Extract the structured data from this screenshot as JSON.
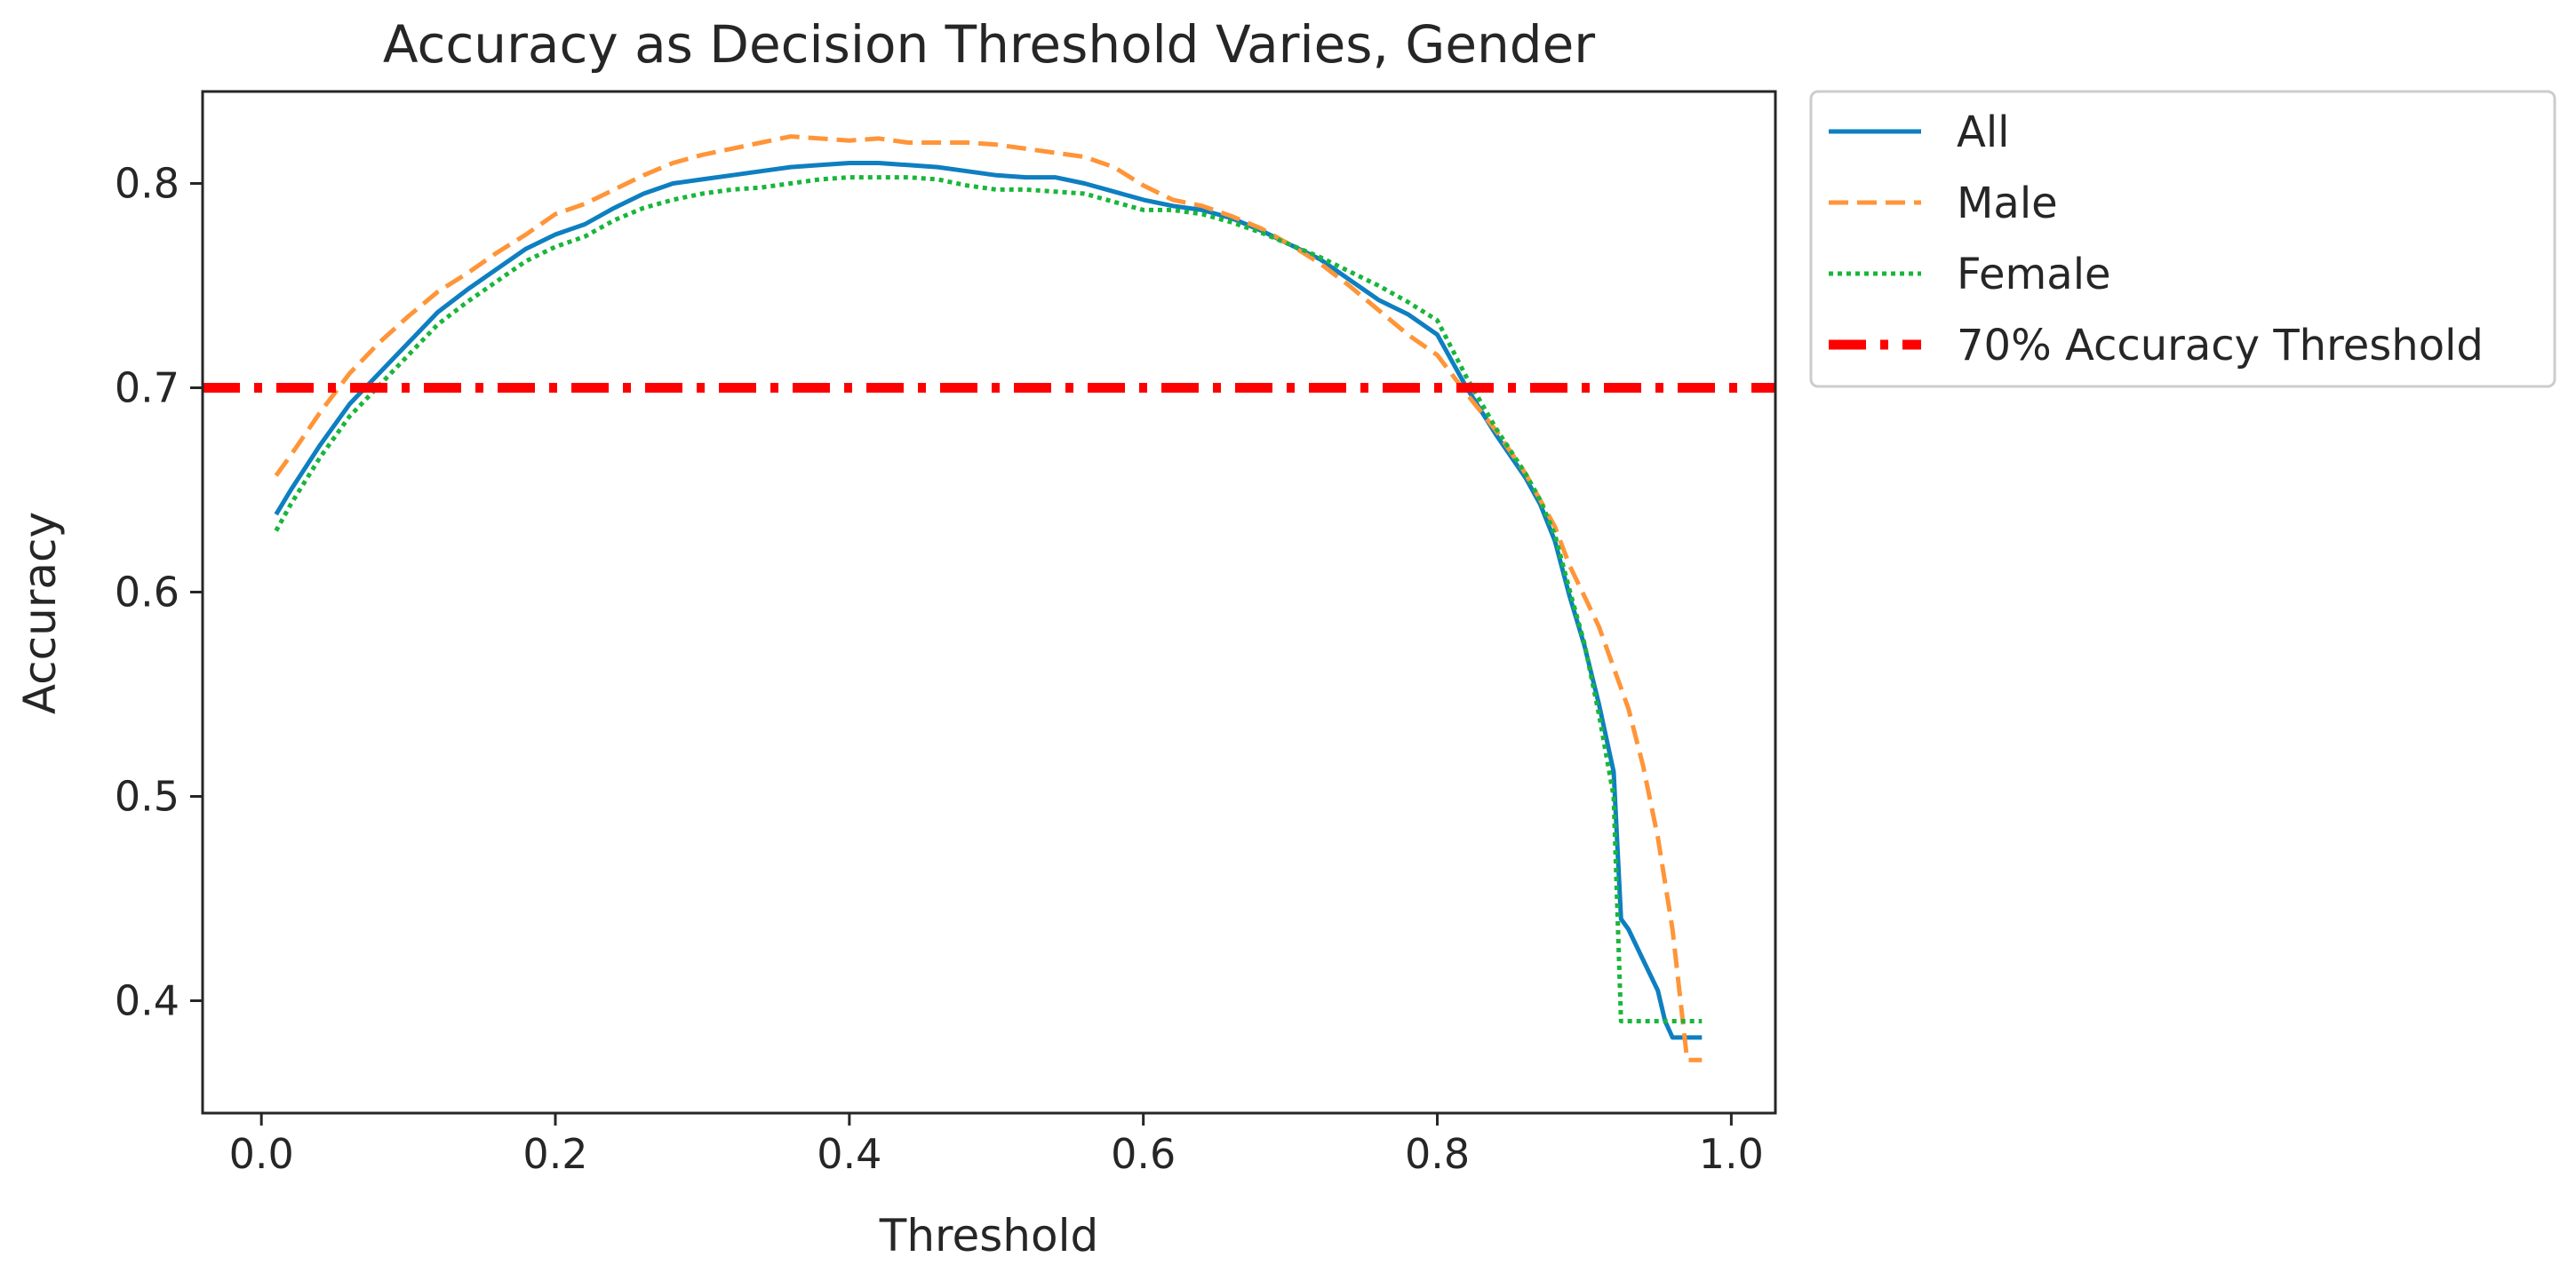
{
  "chart_data": {
    "type": "line",
    "title": "Accuracy as Decision Threshold Varies, Gender",
    "xlabel": "Threshold",
    "ylabel": "Accuracy",
    "xlim": [
      -0.04,
      1.03
    ],
    "ylim": [
      0.345,
      0.845
    ],
    "xticks": [
      0.0,
      0.2,
      0.4,
      0.6,
      0.8,
      1.0
    ],
    "xtick_labels": [
      "0.0",
      "0.2",
      "0.4",
      "0.6",
      "0.8",
      "1.0"
    ],
    "yticks": [
      0.4,
      0.5,
      0.6,
      0.7,
      0.8
    ],
    "ytick_labels": [
      "0.4",
      "0.5",
      "0.6",
      "0.7",
      "0.8"
    ],
    "grid": false,
    "legend_position": "outside upper-right",
    "series": [
      {
        "name": "All",
        "style": "solid",
        "color": "#0e7fc0",
        "x": [
          0.01,
          0.02,
          0.04,
          0.06,
          0.08,
          0.1,
          0.12,
          0.14,
          0.16,
          0.18,
          0.2,
          0.22,
          0.24,
          0.26,
          0.28,
          0.3,
          0.32,
          0.34,
          0.36,
          0.38,
          0.4,
          0.42,
          0.44,
          0.46,
          0.48,
          0.5,
          0.52,
          0.54,
          0.56,
          0.58,
          0.6,
          0.62,
          0.64,
          0.66,
          0.68,
          0.7,
          0.72,
          0.74,
          0.76,
          0.78,
          0.8,
          0.82,
          0.84,
          0.86,
          0.87,
          0.88,
          0.89,
          0.9,
          0.91,
          0.92,
          0.925,
          0.93,
          0.94,
          0.95,
          0.955,
          0.96,
          0.97,
          0.98
        ],
        "y": [
          0.638,
          0.65,
          0.672,
          0.692,
          0.707,
          0.722,
          0.737,
          0.748,
          0.758,
          0.768,
          0.775,
          0.78,
          0.788,
          0.795,
          0.8,
          0.802,
          0.804,
          0.806,
          0.808,
          0.809,
          0.81,
          0.81,
          0.809,
          0.808,
          0.806,
          0.804,
          0.803,
          0.803,
          0.8,
          0.796,
          0.792,
          0.789,
          0.787,
          0.783,
          0.777,
          0.77,
          0.763,
          0.753,
          0.743,
          0.736,
          0.726,
          0.7,
          0.677,
          0.656,
          0.643,
          0.625,
          0.598,
          0.574,
          0.545,
          0.512,
          0.44,
          0.435,
          0.42,
          0.405,
          0.39,
          0.382,
          0.382,
          0.382
        ]
      },
      {
        "name": "Male",
        "style": "dashed",
        "color": "#ff9538",
        "x": [
          0.01,
          0.02,
          0.04,
          0.06,
          0.08,
          0.1,
          0.12,
          0.14,
          0.16,
          0.18,
          0.2,
          0.22,
          0.24,
          0.26,
          0.28,
          0.3,
          0.32,
          0.34,
          0.36,
          0.38,
          0.4,
          0.42,
          0.44,
          0.46,
          0.48,
          0.5,
          0.52,
          0.54,
          0.56,
          0.58,
          0.6,
          0.62,
          0.64,
          0.66,
          0.68,
          0.7,
          0.72,
          0.74,
          0.76,
          0.78,
          0.8,
          0.82,
          0.84,
          0.86,
          0.88,
          0.89,
          0.9,
          0.91,
          0.92,
          0.93,
          0.94,
          0.95,
          0.96,
          0.97,
          0.98
        ],
        "y": [
          0.657,
          0.667,
          0.688,
          0.707,
          0.722,
          0.735,
          0.747,
          0.756,
          0.766,
          0.775,
          0.785,
          0.79,
          0.797,
          0.804,
          0.81,
          0.814,
          0.817,
          0.82,
          0.823,
          0.822,
          0.821,
          0.822,
          0.82,
          0.82,
          0.82,
          0.819,
          0.817,
          0.815,
          0.813,
          0.808,
          0.799,
          0.792,
          0.789,
          0.784,
          0.778,
          0.77,
          0.761,
          0.75,
          0.738,
          0.726,
          0.716,
          0.697,
          0.679,
          0.658,
          0.632,
          0.613,
          0.598,
          0.583,
          0.563,
          0.543,
          0.515,
          0.48,
          0.435,
          0.371,
          0.371
        ]
      },
      {
        "name": "Female",
        "style": "dotted",
        "color": "#19b63b",
        "x": [
          0.01,
          0.02,
          0.04,
          0.06,
          0.08,
          0.1,
          0.12,
          0.14,
          0.16,
          0.18,
          0.2,
          0.22,
          0.24,
          0.26,
          0.28,
          0.3,
          0.32,
          0.34,
          0.36,
          0.38,
          0.4,
          0.42,
          0.44,
          0.46,
          0.48,
          0.5,
          0.52,
          0.54,
          0.56,
          0.58,
          0.6,
          0.62,
          0.64,
          0.66,
          0.68,
          0.7,
          0.72,
          0.74,
          0.76,
          0.78,
          0.8,
          0.82,
          0.84,
          0.86,
          0.87,
          0.88,
          0.89,
          0.9,
          0.91,
          0.92,
          0.925,
          0.93,
          0.94,
          0.95,
          0.96,
          0.97,
          0.98
        ],
        "y": [
          0.63,
          0.643,
          0.666,
          0.686,
          0.701,
          0.716,
          0.731,
          0.742,
          0.752,
          0.762,
          0.769,
          0.774,
          0.782,
          0.788,
          0.792,
          0.795,
          0.797,
          0.798,
          0.8,
          0.802,
          0.803,
          0.803,
          0.803,
          0.802,
          0.799,
          0.797,
          0.797,
          0.796,
          0.795,
          0.791,
          0.787,
          0.787,
          0.785,
          0.781,
          0.776,
          0.77,
          0.764,
          0.757,
          0.75,
          0.742,
          0.733,
          0.705,
          0.68,
          0.658,
          0.645,
          0.628,
          0.601,
          0.575,
          0.54,
          0.5,
          0.39,
          0.39,
          0.39,
          0.39,
          0.39,
          0.39,
          0.39
        ]
      },
      {
        "name": "70% Accuracy Threshold",
        "style": "dashdot",
        "color": "#ff0000",
        "y_constant": 0.7
      }
    ]
  }
}
